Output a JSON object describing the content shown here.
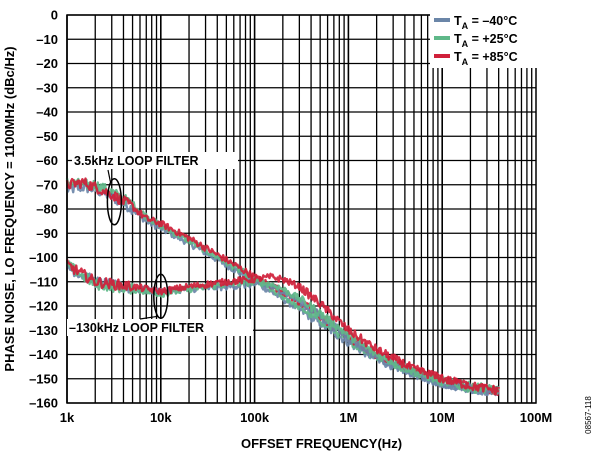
{
  "chart_data": {
    "type": "line",
    "title": "",
    "xlabel": "OFFSET FREQUENCY(Hz)",
    "ylabel": "PHASE NOISE, LO FREQUENCY = 1100MHz (dBc/Hz)",
    "xscale": "log",
    "xlim": [
      1000,
      100000000
    ],
    "ylim": [
      -160,
      0
    ],
    "y_ticks": [
      0,
      -10,
      -20,
      -30,
      -40,
      -50,
      -60,
      -70,
      -80,
      -90,
      -100,
      -110,
      -120,
      -130,
      -140,
      -150,
      -160
    ],
    "x_ticks": [
      1000,
      10000,
      100000,
      1000000,
      10000000,
      100000000
    ],
    "x_tick_labels": [
      "1k",
      "10k",
      "100k",
      "1M",
      "10M",
      "100M"
    ],
    "grid": true,
    "legend_position": "top-right",
    "legend": [
      {
        "label_prefix": "T",
        "label_sub": "A",
        "label_suffix": " = –40°C",
        "color": "#6b86a8"
      },
      {
        "label_prefix": "T",
        "label_sub": "A",
        "label_suffix": " = +25°C",
        "color": "#5fb889"
      },
      {
        "label_prefix": "T",
        "label_sub": "A",
        "label_suffix": " = +85°C",
        "color": "#d0203a"
      }
    ],
    "annotations": [
      {
        "text": "3.5kHz LOOP FILTER",
        "ellipse_x": 3200,
        "ellipse_y": -77
      },
      {
        "text": "–130kHz LOOP FILTER",
        "ellipse_x": 10000,
        "ellipse_y": -116
      }
    ],
    "series": [
      {
        "group": "3.5kHz LOOP FILTER",
        "temp": "-40C",
        "color": "#6b86a8",
        "x": [
          1000,
          1500,
          2000,
          3000,
          5000,
          7000,
          10000,
          20000,
          50000,
          100000,
          200000,
          500000,
          1000000,
          2000000,
          5000000,
          10000000,
          20000000,
          30000000,
          40000000
        ],
        "y": [
          -72,
          -71,
          -72,
          -75,
          -80,
          -85,
          -88,
          -94,
          -103,
          -110,
          -117,
          -127,
          -135,
          -142,
          -148,
          -152,
          -154,
          -155,
          -155
        ]
      },
      {
        "group": "3.5kHz LOOP FILTER",
        "temp": "+25C",
        "color": "#5fb889",
        "x": [
          1000,
          1500,
          2000,
          3000,
          5000,
          7000,
          10000,
          20000,
          50000,
          100000,
          200000,
          500000,
          1000000,
          2000000,
          5000000,
          10000000,
          20000000,
          30000000,
          40000000
        ],
        "y": [
          -69,
          -70,
          -70,
          -73,
          -78,
          -83,
          -87,
          -93,
          -102,
          -109,
          -116,
          -126,
          -134,
          -141,
          -147,
          -151,
          -153,
          -154,
          -155
        ]
      },
      {
        "group": "3.5kHz LOOP FILTER",
        "temp": "+85C",
        "color": "#d0203a",
        "x": [
          1000,
          1500,
          2000,
          3000,
          5000,
          7000,
          10000,
          20000,
          50000,
          100000,
          200000,
          500000,
          1000000,
          2000000,
          5000000,
          10000000,
          20000000,
          30000000,
          40000000
        ],
        "y": [
          -70,
          -69,
          -71,
          -74,
          -79,
          -84,
          -86,
          -92,
          -101,
          -108,
          -114,
          -124,
          -133,
          -140,
          -146,
          -150,
          -153,
          -154,
          -155
        ]
      },
      {
        "group": "130kHz LOOP FILTER",
        "temp": "-40C",
        "color": "#6b86a8",
        "x": [
          1000,
          2000,
          5000,
          10000,
          20000,
          50000,
          100000,
          150000,
          200000,
          300000,
          500000,
          1000000,
          2000000,
          5000000,
          10000000,
          20000000,
          30000000,
          40000000
        ],
        "y": [
          -104,
          -110,
          -113,
          -114,
          -113,
          -112,
          -111,
          -112,
          -114,
          -118,
          -124,
          -133,
          -141,
          -148,
          -152,
          -154,
          -155,
          -155
        ]
      },
      {
        "group": "130kHz LOOP FILTER",
        "temp": "+25C",
        "color": "#5fb889",
        "x": [
          1000,
          2000,
          5000,
          10000,
          20000,
          50000,
          100000,
          150000,
          200000,
          300000,
          500000,
          1000000,
          2000000,
          5000000,
          10000000,
          20000000,
          30000000,
          40000000
        ],
        "y": [
          -103,
          -111,
          -113,
          -115,
          -113,
          -111,
          -110,
          -111,
          -113,
          -117,
          -123,
          -132,
          -140,
          -147,
          -151,
          -154,
          -154,
          -155
        ]
      },
      {
        "group": "130kHz LOOP FILTER",
        "temp": "+85C",
        "color": "#d0203a",
        "x": [
          1000,
          2000,
          5000,
          10000,
          20000,
          50000,
          100000,
          150000,
          200000,
          300000,
          500000,
          1000000,
          2000000,
          5000000,
          10000000,
          20000000,
          30000000,
          40000000
        ],
        "y": [
          -103,
          -110,
          -112,
          -114,
          -112,
          -110,
          -109,
          -108,
          -109,
          -112,
          -119,
          -130,
          -138,
          -146,
          -150,
          -153,
          -154,
          -155
        ]
      }
    ]
  },
  "figure_id": "08567-118"
}
